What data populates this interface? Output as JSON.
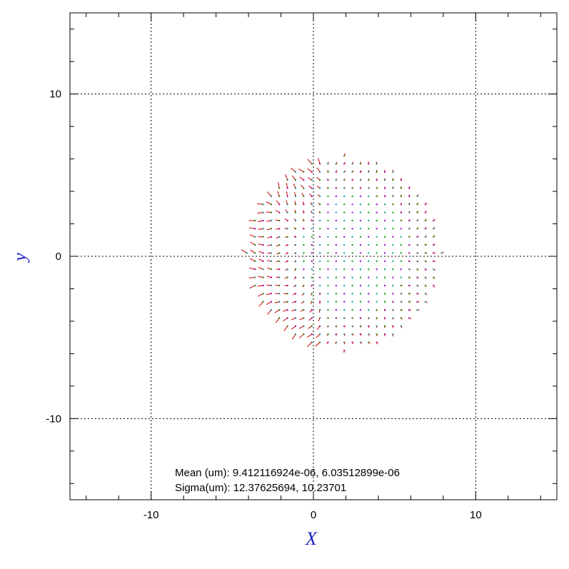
{
  "chart_data": {
    "type": "vector-field",
    "xlabel": "X",
    "ylabel": "y",
    "xlim": [
      -15,
      15
    ],
    "ylim": [
      -15,
      15
    ],
    "xticks": [
      -10,
      0,
      10
    ],
    "yticks": [
      -10,
      0,
      10
    ],
    "grid": true,
    "grid_style": "dotted",
    "field": {
      "center": [
        1.9,
        0.2
      ],
      "radius": 6.0,
      "spacing": 0.5,
      "point_colors": [
        "#00a000",
        "#9900cc",
        "#00a0a0"
      ],
      "arrow_color": "#cc0000"
    },
    "annotations": [
      "Mean (um): 9.412116924e-06, 6.03512899e-06",
      "Sigma(um): 12.37625694, 10.23701"
    ]
  }
}
